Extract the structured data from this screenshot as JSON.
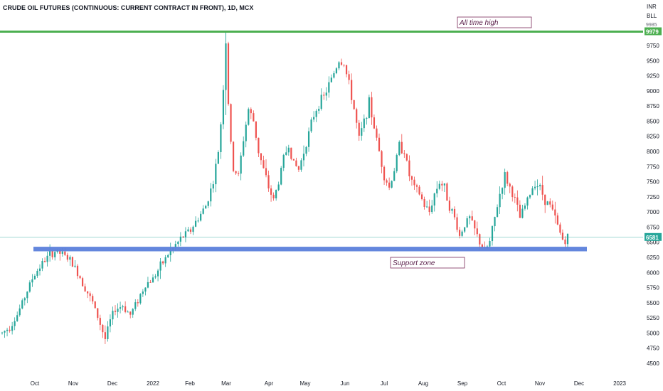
{
  "title": "CRUDE OIL FUTURES (CONTINUOUS: CURRENT CONTRACT IN FRONT), 1D, MCX",
  "currency_label": "INR",
  "unit_label": "BLL",
  "annotations": {
    "ath_label": "All time high",
    "support_label": "Support zone"
  },
  "chart_data": {
    "type": "candlestick",
    "y_ticks": [
      4500,
      4750,
      5000,
      5250,
      5500,
      5750,
      6000,
      6250,
      6500,
      6750,
      7000,
      7250,
      7500,
      7750,
      8000,
      8250,
      8500,
      8750,
      9000,
      9250,
      9500,
      9750
    ],
    "y_top_tick_partial": "9985",
    "x_ticks": [
      "Oct",
      "Nov",
      "Dec",
      "2022",
      "Feb",
      "Mar",
      "Apr",
      "May",
      "Jun",
      "Jul",
      "Aug",
      "Sep",
      "Oct",
      "Nov",
      "Dec",
      "2023"
    ],
    "ylim": [
      4300,
      10150
    ],
    "all_time_high": 9979,
    "last_price": 6581,
    "support_zone": [
      6350,
      6425
    ],
    "trend_points": [
      [
        0,
        5000
      ],
      [
        6,
        5100
      ],
      [
        12,
        5300
      ],
      [
        18,
        5600
      ],
      [
        24,
        5900
      ],
      [
        30,
        6100
      ],
      [
        36,
        6250
      ],
      [
        42,
        6350
      ],
      [
        48,
        6300
      ],
      [
        54,
        6200
      ],
      [
        60,
        6000
      ],
      [
        66,
        5750
      ],
      [
        72,
        5500
      ],
      [
        78,
        5150
      ],
      [
        82,
        4900
      ],
      [
        86,
        5200
      ],
      [
        90,
        5400
      ],
      [
        96,
        5450
      ],
      [
        102,
        5300
      ],
      [
        108,
        5550
      ],
      [
        114,
        5800
      ],
      [
        120,
        5900
      ],
      [
        126,
        6100
      ],
      [
        132,
        6300
      ],
      [
        138,
        6450
      ],
      [
        144,
        6600
      ],
      [
        150,
        6700
      ],
      [
        156,
        6900
      ],
      [
        162,
        7100
      ],
      [
        168,
        7500
      ],
      [
        172,
        8000
      ],
      [
        175,
        8700
      ],
      [
        178,
        9800
      ],
      [
        181,
        8300
      ],
      [
        184,
        7700
      ],
      [
        188,
        7600
      ],
      [
        192,
        8200
      ],
      [
        196,
        8700
      ],
      [
        200,
        8500
      ],
      [
        204,
        8000
      ],
      [
        208,
        7700
      ],
      [
        212,
        7400
      ],
      [
        216,
        7200
      ],
      [
        220,
        7500
      ],
      [
        224,
        7900
      ],
      [
        228,
        8100
      ],
      [
        232,
        7800
      ],
      [
        236,
        7700
      ],
      [
        240,
        8000
      ],
      [
        244,
        8300
      ],
      [
        248,
        8600
      ],
      [
        252,
        8800
      ],
      [
        256,
        8900
      ],
      [
        260,
        9100
      ],
      [
        264,
        9300
      ],
      [
        268,
        9500
      ],
      [
        272,
        9450
      ],
      [
        276,
        9100
      ],
      [
        280,
        8700
      ],
      [
        284,
        8200
      ],
      [
        288,
        8500
      ],
      [
        292,
        8800
      ],
      [
        296,
        8400
      ],
      [
        300,
        8000
      ],
      [
        304,
        7600
      ],
      [
        308,
        7400
      ],
      [
        312,
        7700
      ],
      [
        316,
        8100
      ],
      [
        320,
        8000
      ],
      [
        324,
        7600
      ],
      [
        328,
        7400
      ],
      [
        332,
        7300
      ],
      [
        336,
        7100
      ],
      [
        340,
        7000
      ],
      [
        344,
        7300
      ],
      [
        348,
        7500
      ],
      [
        352,
        7400
      ],
      [
        356,
        7100
      ],
      [
        360,
        6900
      ],
      [
        364,
        6600
      ],
      [
        368,
        6800
      ],
      [
        372,
        6900
      ],
      [
        376,
        6700
      ],
      [
        380,
        6500
      ],
      [
        384,
        6350
      ],
      [
        388,
        6500
      ],
      [
        392,
        6900
      ],
      [
        396,
        7300
      ],
      [
        400,
        7600
      ],
      [
        404,
        7400
      ],
      [
        408,
        7200
      ],
      [
        412,
        6900
      ],
      [
        416,
        7100
      ],
      [
        420,
        7300
      ],
      [
        424,
        7500
      ],
      [
        428,
        7400
      ],
      [
        432,
        7200
      ],
      [
        436,
        7100
      ],
      [
        440,
        6900
      ],
      [
        444,
        6650
      ],
      [
        447,
        6500
      ],
      [
        450,
        6581
      ]
    ]
  }
}
